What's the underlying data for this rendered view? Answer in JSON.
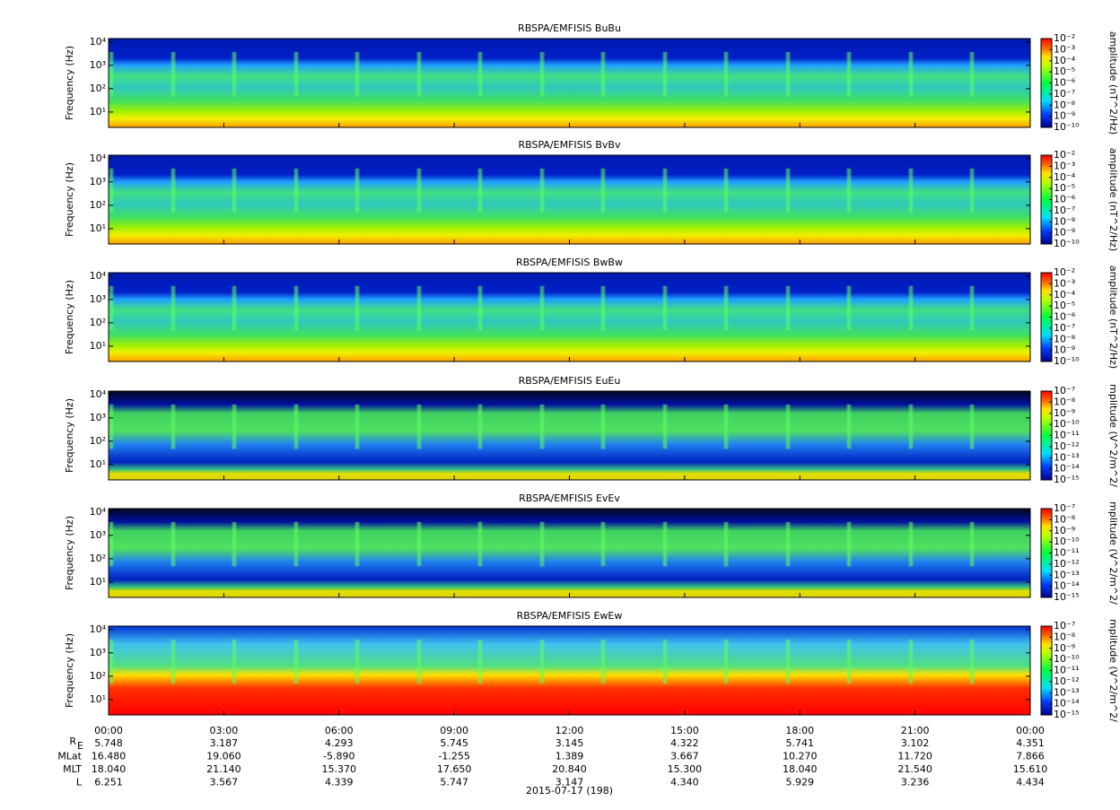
{
  "chart_data": [
    {
      "type": "spectrogram",
      "title": "RBSPA/EMFISIS  BuBu",
      "ylabel": "Frequency (Hz)",
      "ylim": [
        2.2,
        14000
      ],
      "log_y": true,
      "yticks": [
        {
          "value": 10,
          "label": "10¹"
        },
        {
          "value": 100,
          "label": "10²"
        },
        {
          "value": 1000,
          "label": "10³"
        },
        {
          "value": 10000,
          "label": "10⁴"
        }
      ],
      "colorbar": {
        "label": "amplitude (nT^2/Hz)",
        "lim": [
          1e-10,
          0.01
        ],
        "log": true,
        "ticks": [
          {
            "value": 0.01,
            "label": "10⁻²"
          },
          {
            "value": 0.001,
            "label": "10⁻³"
          },
          {
            "value": 0.0001,
            "label": "10⁻⁴"
          },
          {
            "value": 1e-05,
            "label": "10⁻⁵"
          },
          {
            "value": 1e-06,
            "label": "10⁻⁶"
          },
          {
            "value": 1e-07,
            "label": "10⁻⁷"
          },
          {
            "value": 1e-08,
            "label": "10⁻⁸"
          },
          {
            "value": 1e-09,
            "label": "10⁻⁹"
          },
          {
            "value": 1e-10,
            "label": "10⁻¹⁰"
          }
        ]
      }
    },
    {
      "type": "spectrogram",
      "title": "RBSPA/EMFISIS  BvBv",
      "ylabel": "Frequency (Hz)",
      "ylim": [
        2.2,
        14000
      ],
      "log_y": true,
      "yticks": [
        {
          "value": 10,
          "label": "10¹"
        },
        {
          "value": 100,
          "label": "10²"
        },
        {
          "value": 1000,
          "label": "10³"
        },
        {
          "value": 10000,
          "label": "10⁴"
        }
      ],
      "colorbar": {
        "label": "amplitude (nT^2/Hz)",
        "lim": [
          1e-10,
          0.01
        ],
        "log": true,
        "ticks": [
          {
            "value": 0.01,
            "label": "10⁻²"
          },
          {
            "value": 0.001,
            "label": "10⁻³"
          },
          {
            "value": 0.0001,
            "label": "10⁻⁴"
          },
          {
            "value": 1e-05,
            "label": "10⁻⁵"
          },
          {
            "value": 1e-06,
            "label": "10⁻⁶"
          },
          {
            "value": 1e-07,
            "label": "10⁻⁷"
          },
          {
            "value": 1e-08,
            "label": "10⁻⁸"
          },
          {
            "value": 1e-09,
            "label": "10⁻⁹"
          },
          {
            "value": 1e-10,
            "label": "10⁻¹⁰"
          }
        ]
      }
    },
    {
      "type": "spectrogram",
      "title": "RBSPA/EMFISIS  BwBw",
      "ylabel": "Frequency (Hz)",
      "ylim": [
        2.2,
        14000
      ],
      "log_y": true,
      "yticks": [
        {
          "value": 10,
          "label": "10¹"
        },
        {
          "value": 100,
          "label": "10²"
        },
        {
          "value": 1000,
          "label": "10³"
        },
        {
          "value": 10000,
          "label": "10⁴"
        }
      ],
      "colorbar": {
        "label": "amplitude (nT^2/Hz)",
        "lim": [
          1e-10,
          0.01
        ],
        "log": true,
        "ticks": [
          {
            "value": 0.01,
            "label": "10⁻²"
          },
          {
            "value": 0.001,
            "label": "10⁻³"
          },
          {
            "value": 0.0001,
            "label": "10⁻⁴"
          },
          {
            "value": 1e-05,
            "label": "10⁻⁵"
          },
          {
            "value": 1e-06,
            "label": "10⁻⁶"
          },
          {
            "value": 1e-07,
            "label": "10⁻⁷"
          },
          {
            "value": 1e-08,
            "label": "10⁻⁸"
          },
          {
            "value": 1e-09,
            "label": "10⁻⁹"
          },
          {
            "value": 1e-10,
            "label": "10⁻¹⁰"
          }
        ]
      }
    },
    {
      "type": "spectrogram",
      "title": "RBSPA/EMFISIS  EuEu",
      "ylabel": "Frequency (Hz)",
      "ylim": [
        2.2,
        14000
      ],
      "log_y": true,
      "yticks": [
        {
          "value": 10,
          "label": "10¹"
        },
        {
          "value": 100,
          "label": "10²"
        },
        {
          "value": 1000,
          "label": "10³"
        },
        {
          "value": 10000,
          "label": "10⁴"
        }
      ],
      "colorbar": {
        "label": "mplitude (V^2/m^2/",
        "lim": [
          1e-15,
          1e-07
        ],
        "log": true,
        "ticks": [
          {
            "value": 1e-07,
            "label": "10⁻⁷"
          },
          {
            "value": 1e-08,
            "label": "10⁻⁸"
          },
          {
            "value": 1e-09,
            "label": "10⁻⁹"
          },
          {
            "value": 1e-10,
            "label": "10⁻¹⁰"
          },
          {
            "value": 1e-11,
            "label": "10⁻¹¹"
          },
          {
            "value": 1e-12,
            "label": "10⁻¹²"
          },
          {
            "value": 1e-13,
            "label": "10⁻¹³"
          },
          {
            "value": 1e-14,
            "label": "10⁻¹⁴"
          },
          {
            "value": 1e-15,
            "label": "10⁻¹⁵"
          }
        ]
      }
    },
    {
      "type": "spectrogram",
      "title": "RBSPA/EMFISIS  EvEv",
      "ylabel": "Frequency (Hz)",
      "ylim": [
        2.2,
        14000
      ],
      "log_y": true,
      "yticks": [
        {
          "value": 10,
          "label": "10¹"
        },
        {
          "value": 100,
          "label": "10²"
        },
        {
          "value": 1000,
          "label": "10³"
        },
        {
          "value": 10000,
          "label": "10⁴"
        }
      ],
      "colorbar": {
        "label": "mplitude (V^2/m^2/",
        "lim": [
          1e-15,
          1e-07
        ],
        "log": true,
        "ticks": [
          {
            "value": 1e-07,
            "label": "10⁻⁷"
          },
          {
            "value": 1e-08,
            "label": "10⁻⁸"
          },
          {
            "value": 1e-09,
            "label": "10⁻⁹"
          },
          {
            "value": 1e-10,
            "label": "10⁻¹⁰"
          },
          {
            "value": 1e-11,
            "label": "10⁻¹¹"
          },
          {
            "value": 1e-12,
            "label": "10⁻¹²"
          },
          {
            "value": 1e-13,
            "label": "10⁻¹³"
          },
          {
            "value": 1e-14,
            "label": "10⁻¹⁴"
          },
          {
            "value": 1e-15,
            "label": "10⁻¹⁵"
          }
        ]
      }
    },
    {
      "type": "spectrogram",
      "title": "RBSPA/EMFISIS  EwEw",
      "ylabel": "Frequency (Hz)",
      "ylim": [
        2.2,
        14000
      ],
      "log_y": true,
      "yticks": [
        {
          "value": 10,
          "label": "10¹"
        },
        {
          "value": 100,
          "label": "10²"
        },
        {
          "value": 1000,
          "label": "10³"
        },
        {
          "value": 10000,
          "label": "10⁴"
        }
      ],
      "colorbar": {
        "label": "mplitude (V^2/m^2/",
        "lim": [
          1e-15,
          1e-07
        ],
        "log": true,
        "ticks": [
          {
            "value": 1e-07,
            "label": "10⁻⁷"
          },
          {
            "value": 1e-08,
            "label": "10⁻⁸"
          },
          {
            "value": 1e-09,
            "label": "10⁻⁹"
          },
          {
            "value": 1e-10,
            "label": "10⁻¹⁰"
          },
          {
            "value": 1e-11,
            "label": "10⁻¹¹"
          },
          {
            "value": 1e-12,
            "label": "10⁻¹²"
          },
          {
            "value": 1e-13,
            "label": "10⁻¹³"
          },
          {
            "value": 1e-14,
            "label": "10⁻¹⁴"
          },
          {
            "value": 1e-15,
            "label": "10⁻¹⁵"
          }
        ]
      }
    }
  ],
  "x_axis": {
    "ticks": [
      "00:00",
      "03:00",
      "06:00",
      "09:00",
      "12:00",
      "15:00",
      "18:00",
      "21:00",
      "00:00"
    ],
    "label": "2015-07-17 (198)"
  },
  "ephemeris": [
    {
      "name": "R",
      "subscript": "E",
      "values": [
        "5.748",
        "3.187",
        "4.293",
        "5.745",
        "3.145",
        "4.322",
        "5.741",
        "3.102",
        "4.351"
      ]
    },
    {
      "name": "MLat",
      "values": [
        "16.480",
        "19.060",
        "-5.890",
        "-1.255",
        "1.389",
        "3.667",
        "10.270",
        "11.720",
        "7.866"
      ]
    },
    {
      "name": "MLT",
      "values": [
        "18.040",
        "21.140",
        "15.370",
        "17.650",
        "20.840",
        "15.300",
        "18.040",
        "21.540",
        "15.610"
      ]
    },
    {
      "name": "L",
      "values": [
        "6.251",
        "3.567",
        "4.339",
        "5.747",
        "3.147",
        "4.340",
        "5.929",
        "3.236",
        "4.434"
      ]
    }
  ]
}
